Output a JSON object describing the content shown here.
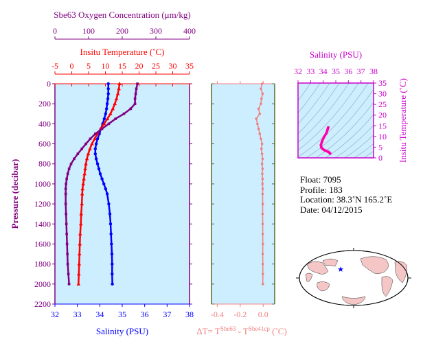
{
  "chart_data": [
    {
      "type": "line",
      "panel": "profile",
      "ylabel": "Pressure (decibar)",
      "ylim": [
        0,
        2200
      ],
      "yticks": [
        0,
        200,
        400,
        600,
        800,
        1000,
        1200,
        1400,
        1600,
        1800,
        2000,
        2200
      ],
      "axes": {
        "oxygen": {
          "label": "Sbe63 Oxygen Concentration (μm/kg)",
          "lim": [
            0,
            400
          ],
          "ticks": [
            0,
            100,
            200,
            300,
            400
          ],
          "color": "#800080"
        },
        "temperature": {
          "label": "Insitu Temperature (˚C)",
          "lim": [
            -5,
            35
          ],
          "ticks": [
            -5,
            0,
            5,
            10,
            15,
            20,
            25,
            30,
            35
          ],
          "color": "#ff0000"
        },
        "salinity": {
          "label": "Salinity (PSU)",
          "lim": [
            32,
            38
          ],
          "ticks": [
            32,
            33,
            34,
            35,
            36,
            37,
            38
          ],
          "color": "#0000ff"
        }
      },
      "series": [
        {
          "axis": "salinity",
          "color": "#0000ff",
          "marker": "circle",
          "x": [
            34.38,
            34.38,
            34.38,
            34.36,
            34.33,
            34.3,
            34.26,
            34.2,
            34.13,
            34.05,
            33.98,
            33.9,
            33.84,
            33.8,
            33.8,
            33.84,
            33.9,
            33.96,
            34.02,
            34.1,
            34.18,
            34.26,
            34.33,
            34.4,
            34.45,
            34.48,
            34.5,
            34.52,
            34.54,
            34.55,
            34.55,
            34.56
          ],
          "y": [
            0,
            50,
            100,
            150,
            200,
            250,
            300,
            350,
            400,
            450,
            500,
            550,
            600,
            650,
            700,
            750,
            800,
            850,
            900,
            950,
            1000,
            1050,
            1100,
            1200,
            1300,
            1400,
            1500,
            1600,
            1700,
            1800,
            1900,
            2000
          ]
        },
        {
          "axis": "temperature",
          "color": "#ff0000",
          "marker": "triangle",
          "x": [
            14.2,
            14.0,
            13.7,
            13.3,
            12.8,
            12.2,
            11.5,
            10.6,
            9.6,
            8.6,
            7.6,
            6.8,
            6.0,
            5.4,
            4.9,
            4.5,
            4.2,
            4.0,
            3.8,
            3.6,
            3.4,
            3.2,
            3.1,
            3.0,
            2.8,
            2.7,
            2.5,
            2.4,
            2.3,
            2.2,
            2.1,
            2.0
          ],
          "y": [
            0,
            50,
            100,
            150,
            200,
            250,
            300,
            350,
            400,
            450,
            500,
            550,
            600,
            650,
            700,
            750,
            800,
            850,
            900,
            950,
            1000,
            1050,
            1100,
            1200,
            1300,
            1400,
            1500,
            1600,
            1700,
            1800,
            1900,
            2000
          ]
        },
        {
          "axis": "oxygen",
          "color": "#800080",
          "marker": "square",
          "x": [
            245,
            242,
            240,
            238,
            238,
            225,
            205,
            180,
            160,
            140,
            120,
            105,
            92,
            80,
            68,
            57,
            48,
            42,
            38,
            35,
            33,
            32,
            32,
            32,
            33,
            34,
            35,
            36,
            37,
            38,
            40,
            42
          ],
          "y": [
            0,
            50,
            100,
            150,
            200,
            250,
            300,
            350,
            400,
            450,
            500,
            550,
            600,
            650,
            700,
            750,
            800,
            850,
            900,
            950,
            1000,
            1050,
            1100,
            1200,
            1300,
            1400,
            1500,
            1600,
            1700,
            1800,
            1900,
            2000
          ]
        }
      ]
    },
    {
      "type": "scatter",
      "panel": "delta_t",
      "xlabel_parts": {
        "prefix": "ΔT= T",
        "sup1": "Sbe63",
        "mid": " - T",
        "sup2": "Sbe41cp",
        "suffix": " (˚C)"
      },
      "xlim": [
        -0.45,
        0.1
      ],
      "xticks": [
        -0.4,
        -0.2,
        0.0
      ],
      "xtick_labels": [
        "-0.4",
        "-0.2",
        "0.0"
      ],
      "ylim": [
        0,
        2200
      ],
      "color": "#f08080",
      "x": [
        -0.01,
        -0.02,
        -0.005,
        -0.015,
        -0.02,
        -0.04,
        -0.03,
        -0.06,
        -0.05,
        -0.04,
        -0.03,
        -0.02,
        -0.01,
        -0.015,
        -0.01,
        -0.005,
        -0.01,
        -0.005,
        -0.008,
        -0.005,
        -0.006,
        -0.004,
        -0.005,
        -0.004,
        -0.005,
        -0.004,
        -0.004,
        -0.003,
        -0.004,
        -0.003,
        -0.003,
        -0.003
      ],
      "y": [
        0,
        50,
        100,
        150,
        200,
        250,
        300,
        350,
        400,
        450,
        500,
        550,
        600,
        650,
        700,
        750,
        800,
        850,
        900,
        950,
        1000,
        1050,
        1100,
        1200,
        1300,
        1400,
        1500,
        1600,
        1700,
        1800,
        1900,
        2000
      ]
    },
    {
      "type": "line",
      "panel": "ts_diagram",
      "xlabel": "Salinity (PSU)",
      "ylabel": "Insitu Temperature (˚C)",
      "xlim": [
        32,
        38
      ],
      "ylim": [
        0,
        35
      ],
      "xticks": [
        32,
        33,
        34,
        35,
        36,
        37,
        38
      ],
      "yticks": [
        0,
        5,
        10,
        15,
        20,
        25,
        30,
        35
      ],
      "color": "#ff00aa",
      "x": [
        34.4,
        34.35,
        34.25,
        34.05,
        33.9,
        33.82,
        33.85,
        33.95,
        34.1,
        34.25,
        34.4,
        34.5,
        34.55
      ],
      "y": [
        14.2,
        13.3,
        11.5,
        9.6,
        7.6,
        6.0,
        4.9,
        4.2,
        3.6,
        3.2,
        2.8,
        2.4,
        2.0
      ]
    }
  ],
  "info": {
    "float": "Float:  7095",
    "profile": "Profile:  183",
    "location": "Location:  38.3˚N  165.2˚E",
    "date": "Date:  04/12/2015"
  },
  "colors": {
    "background": "#cceeff",
    "grid": "#556b2f",
    "oxygen": "#800080",
    "temperature": "#ff0000",
    "salinity": "#0000ff",
    "delta": "#f08080",
    "ts": "#ff00aa",
    "ts_axes": "#cc00cc"
  },
  "map": {
    "land": "#f4c6c6",
    "ocean": "#ffffff",
    "marker": "#0000ff"
  }
}
